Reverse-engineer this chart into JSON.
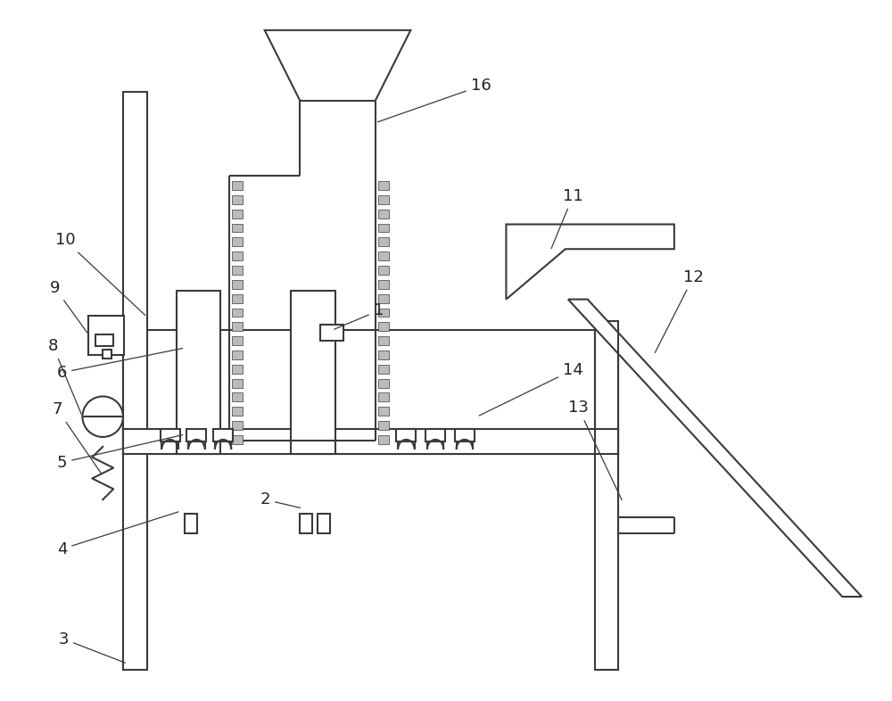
{
  "bg_color": "#ffffff",
  "line_color": "#3a3a3a",
  "lw": 1.5,
  "fig_width": 10.0,
  "fig_height": 7.86,
  "label_fontsize": 13,
  "label_color": "#222222"
}
